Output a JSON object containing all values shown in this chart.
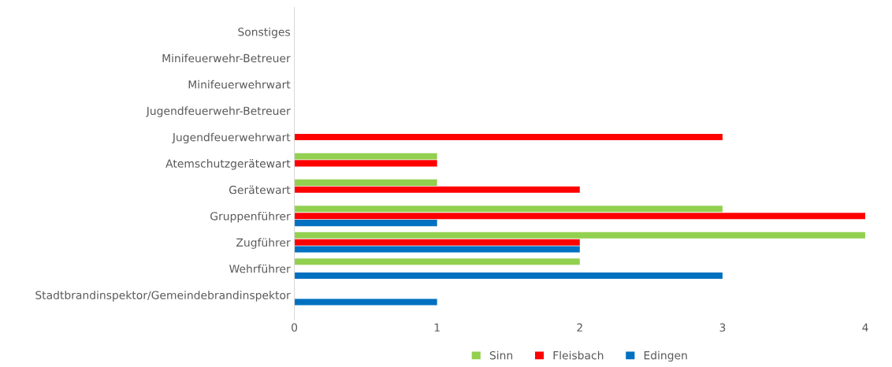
{
  "chart_data": {
    "type": "bar",
    "orientation": "horizontal",
    "categories": [
      "Sonstiges",
      "Minifeuerwehr-Betreuer",
      "Minifeuerwehrwart",
      "Jugendfeuerwehr-Betreuer",
      "Jugendfeuerwehrwart",
      "Atemschutzgerätewart",
      "Gerätewart",
      "Gruppenführer",
      "Zugführer",
      "Wehrführer",
      "Stadtbrandinspektor/Gemeindebrandinspektor"
    ],
    "series": [
      {
        "name": "Sinn",
        "color": "#92d050",
        "values": [
          0,
          0,
          0,
          0,
          0,
          1,
          1,
          3,
          4,
          2,
          0
        ]
      },
      {
        "name": "Fleisbach",
        "color": "#ff0000",
        "values": [
          0,
          0,
          0,
          0,
          3,
          1,
          2,
          4,
          2,
          0,
          0
        ]
      },
      {
        "name": "Edingen",
        "color": "#0070c0",
        "values": [
          0,
          0,
          0,
          0,
          0,
          0,
          0,
          1,
          2,
          3,
          1
        ]
      }
    ],
    "xlim": [
      0,
      4
    ],
    "xticks": [
      0,
      1,
      2,
      3,
      4
    ],
    "grid": false,
    "legend": "bottom"
  }
}
